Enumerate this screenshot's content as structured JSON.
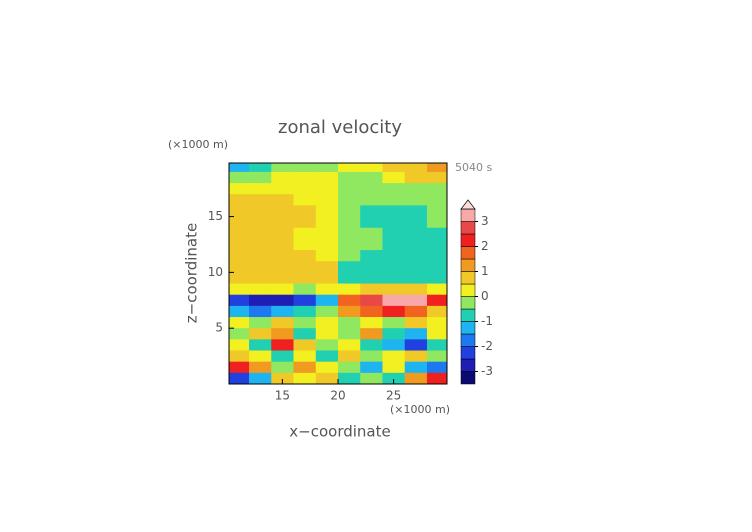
{
  "chart_data": {
    "type": "contour",
    "title": "zonal velocity",
    "time_label": "5040 s",
    "xlabel": "x−coordinate",
    "ylabel": "z−coordinate",
    "x_unit": "(×1000 m)",
    "y_unit": "(×1000 m)",
    "x": [
      11,
      13,
      15,
      17,
      19,
      21,
      23,
      25,
      27,
      29
    ],
    "y": [
      19.5,
      18.5,
      17.5,
      16.5,
      15.5,
      14.5,
      13.5,
      12.5,
      11.5,
      10.5,
      9.5,
      8.5,
      7.5,
      6.5,
      5.5,
      4.5,
      3.5,
      2.5,
      1.5,
      0.5
    ],
    "z": [
      [
        -1.2,
        -0.8,
        -0.4,
        -0.3,
        -0.2,
        0.2,
        0.3,
        0.5,
        0.8,
        1.0
      ],
      [
        -0.3,
        -0.2,
        0.2,
        0.2,
        0.2,
        -0.2,
        -0.2,
        0.3,
        0.6,
        0.7
      ],
      [
        0.3,
        0.3,
        0.3,
        0.3,
        0.3,
        -0.3,
        -0.3,
        -0.3,
        -0.3,
        -0.3
      ],
      [
        0.7,
        0.7,
        0.7,
        0.3,
        0.3,
        -0.3,
        -0.3,
        -0.3,
        -0.4,
        -0.3
      ],
      [
        0.7,
        0.7,
        0.8,
        0.7,
        0.3,
        -0.3,
        -0.7,
        -0.8,
        -0.8,
        -0.4
      ],
      [
        0.7,
        0.7,
        0.7,
        0.7,
        0.3,
        -0.3,
        -0.8,
        -0.8,
        -0.7,
        -0.3
      ],
      [
        0.7,
        0.7,
        0.7,
        0.3,
        0.3,
        -0.3,
        -0.3,
        -0.7,
        -0.7,
        -0.7
      ],
      [
        0.7,
        0.7,
        0.7,
        0.3,
        0.3,
        -0.3,
        -0.3,
        -0.7,
        -0.7,
        -0.7
      ],
      [
        0.7,
        0.7,
        0.7,
        0.7,
        0.3,
        -0.3,
        -0.7,
        -0.7,
        -0.7,
        -0.7
      ],
      [
        0.7,
        0.7,
        0.7,
        0.7,
        0.7,
        -0.7,
        -0.7,
        -0.7,
        -0.7,
        -0.7
      ],
      [
        0.7,
        0.7,
        0.7,
        0.7,
        0.8,
        -0.8,
        -0.7,
        -0.7,
        -0.7,
        -0.7
      ],
      [
        0.3,
        0.3,
        0.3,
        -0.3,
        0.3,
        0.3,
        0.7,
        0.7,
        0.7,
        0.3
      ],
      [
        -2.2,
        -2.7,
        -2.7,
        -2.2,
        -1.2,
        1.7,
        2.7,
        3.2,
        3.2,
        2.2
      ],
      [
        -1.2,
        -1.7,
        -1.2,
        -0.7,
        -0.3,
        1.2,
        1.7,
        2.2,
        1.7,
        0.7
      ],
      [
        0.3,
        -0.3,
        0.7,
        -0.3,
        0.3,
        -0.3,
        0.3,
        -0.3,
        0.7,
        0.3
      ],
      [
        -0.3,
        0.7,
        1.2,
        -0.7,
        0.3,
        -0.3,
        1.2,
        -0.7,
        -1.2,
        0.3
      ],
      [
        0.3,
        -0.7,
        2.2,
        0.7,
        -0.3,
        0.3,
        -0.7,
        -1.2,
        -2.2,
        -0.7
      ],
      [
        0.7,
        0.3,
        -0.7,
        0.3,
        -0.7,
        0.7,
        -0.3,
        0.3,
        0.7,
        -0.3
      ],
      [
        2.2,
        1.2,
        -0.3,
        1.2,
        0.3,
        -0.3,
        -1.2,
        0.3,
        -1.2,
        -1.7
      ],
      [
        -2.2,
        -1.2,
        0.7,
        0.3,
        0.7,
        -0.7,
        -0.3,
        -0.7,
        1.2,
        2.2
      ]
    ],
    "xlim": [
      10.2,
      29.8
    ],
    "ylim": [
      0,
      19.8
    ],
    "xticks": [
      15,
      20,
      25
    ],
    "yticks": [
      5,
      10,
      15
    ],
    "levels": [
      -3.5,
      -3,
      -2.5,
      -2,
      -1.5,
      -1,
      -0.5,
      0,
      0.5,
      1,
      1.5,
      2,
      2.5,
      3,
      3.5
    ],
    "colors": [
      "#0a0a70",
      "#1e1eb4",
      "#2040e0",
      "#1e78f0",
      "#1eb4f0",
      "#20d0b0",
      "#90e860",
      "#f2f020",
      "#f0c828",
      "#f09a20",
      "#f06420",
      "#f02020",
      "#e84848",
      "#f8a8a8",
      "#fcdcdc"
    ],
    "extend": "max",
    "colorbar_ticks": [
      -3,
      -2,
      -1,
      0,
      1,
      2,
      3
    ]
  }
}
